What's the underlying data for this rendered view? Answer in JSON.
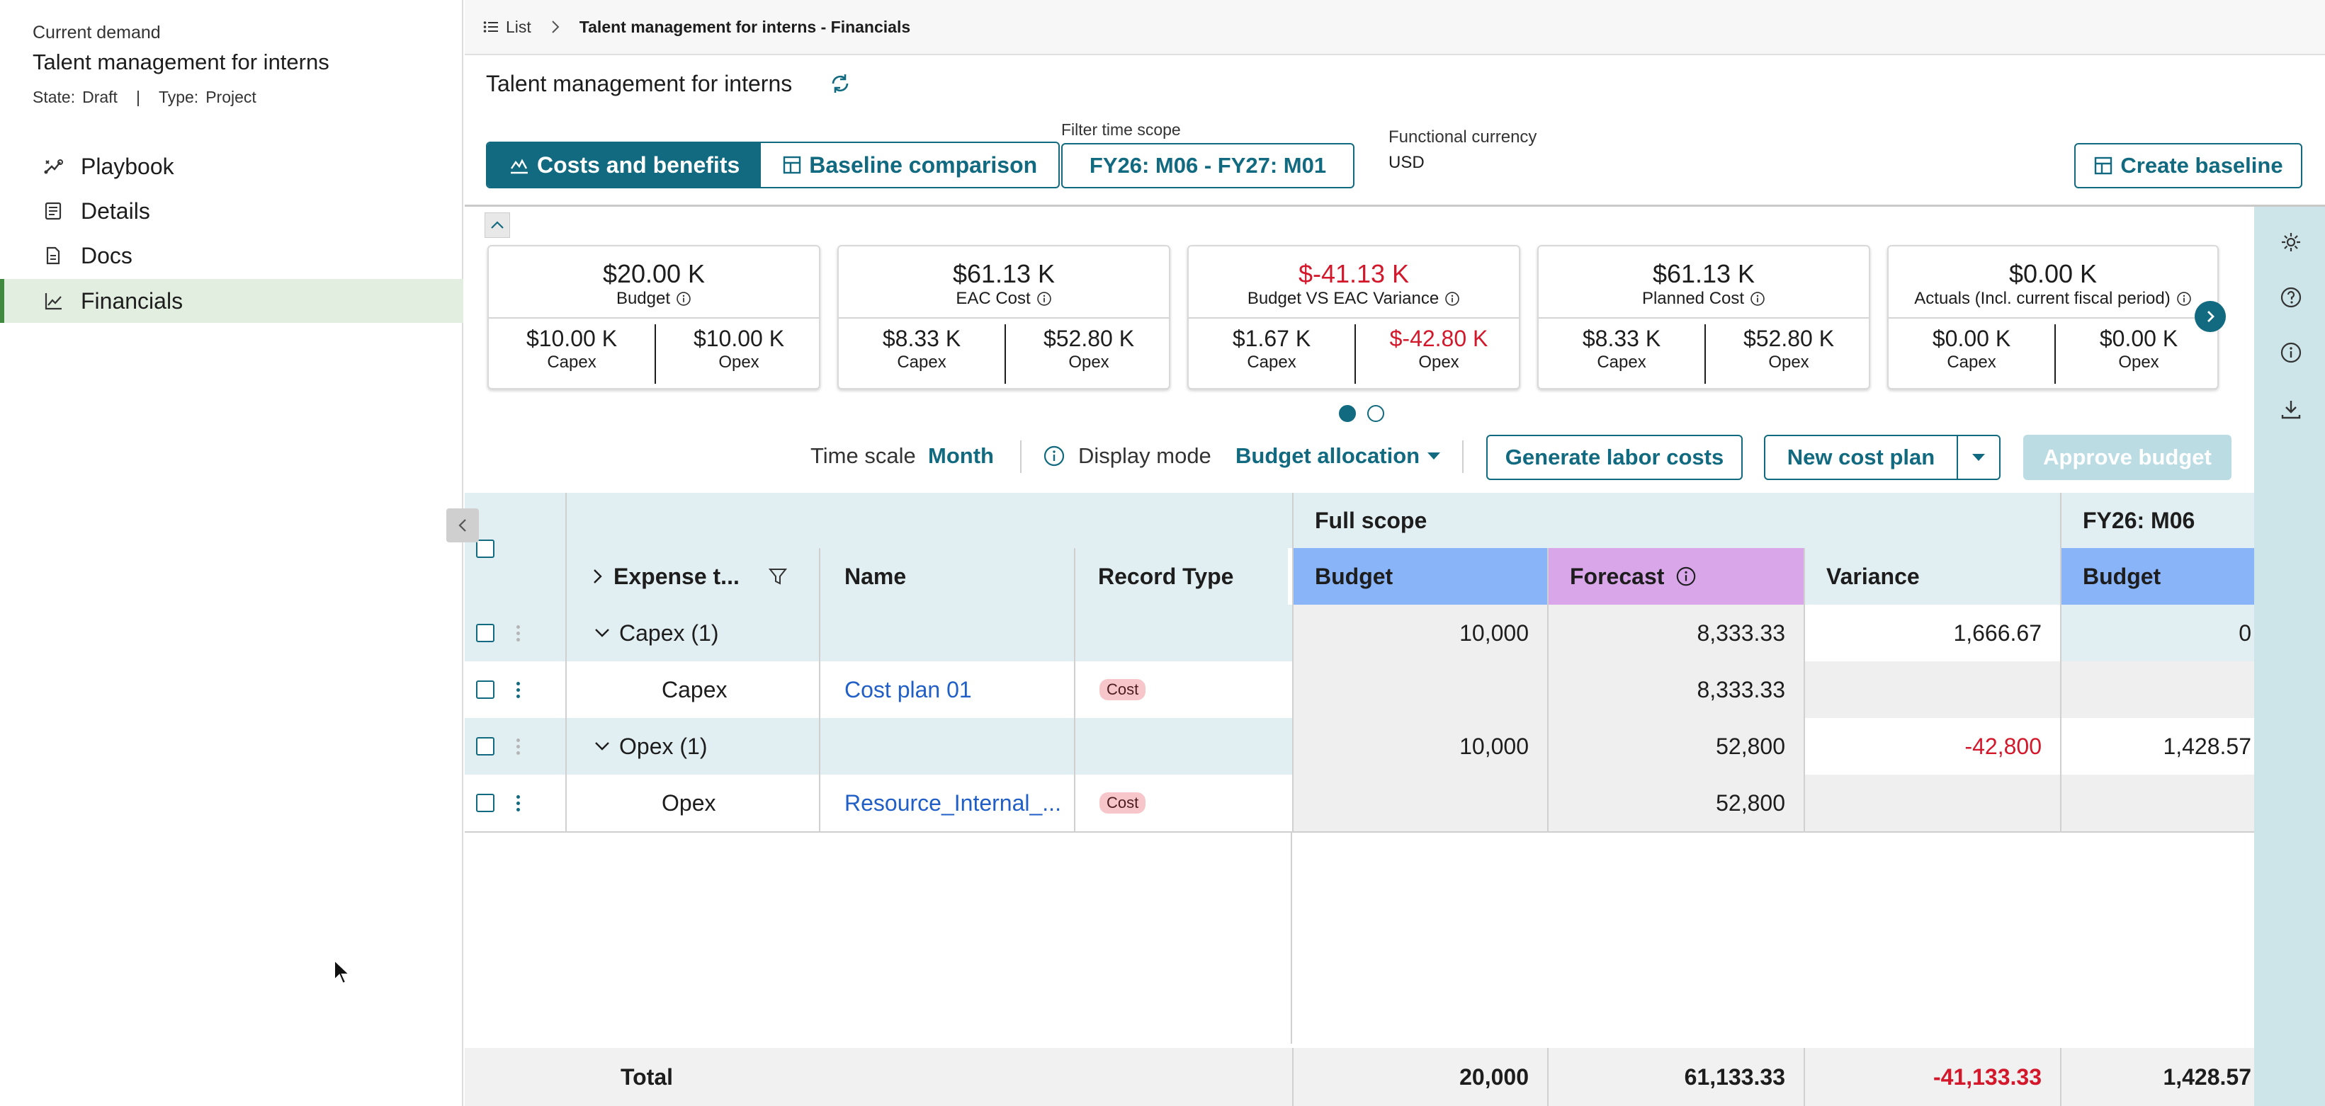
{
  "sidebar": {
    "overline": "Current demand",
    "title": "Talent management for interns",
    "state_label": "State:",
    "state_value": "Draft",
    "separator": "|",
    "type_label": "Type:",
    "type_value": "Project",
    "items": [
      {
        "label": "Playbook",
        "icon": "playbook-icon"
      },
      {
        "label": "Details",
        "icon": "details-icon"
      },
      {
        "label": "Docs",
        "icon": "docs-icon"
      },
      {
        "label": "Financials",
        "icon": "chart-line-icon",
        "active": true
      }
    ]
  },
  "breadcrumb": {
    "list": "List",
    "current": "Talent management for interns - Financials"
  },
  "header": {
    "title": "Talent management for interns",
    "tabs": [
      {
        "label": "Costs and benefits",
        "active": true
      },
      {
        "label": "Baseline comparison",
        "active": false
      }
    ],
    "filter_label": "Filter time scope",
    "filter_value": "FY26: M06 - FY27: M01",
    "currency_label": "Functional currency",
    "currency_value": "USD",
    "create_baseline": "Create baseline"
  },
  "cards": [
    {
      "value": "$20.00 K",
      "label": "Budget",
      "capex": "$10.00 K",
      "opex": "$10.00 K",
      "value_negative": false,
      "opex_negative": false
    },
    {
      "value": "$61.13 K",
      "label": "EAC Cost",
      "capex": "$8.33 K",
      "opex": "$52.80 K",
      "value_negative": false,
      "opex_negative": false
    },
    {
      "value": "$-41.13 K",
      "label": "Budget VS EAC Variance",
      "capex": "$1.67 K",
      "opex": "$-42.80 K",
      "value_negative": true,
      "opex_negative": true
    },
    {
      "value": "$61.13 K",
      "label": "Planned Cost",
      "capex": "$8.33 K",
      "opex": "$52.80 K",
      "value_negative": false,
      "opex_negative": false
    },
    {
      "value": "$0.00 K",
      "label": "Actuals (Incl. current fiscal period)",
      "capex": "$0.00 K",
      "opex": "$0.00 K",
      "value_negative": false,
      "opex_negative": false
    }
  ],
  "card_sub_labels": {
    "capex": "Capex",
    "opex": "Opex"
  },
  "carousel": {
    "pages": 2,
    "current": 1
  },
  "toolbar": {
    "time_scale_label": "Time scale",
    "time_scale_value": "Month",
    "display_mode_label": "Display mode",
    "display_mode_value": "Budget allocation",
    "generate": "Generate labor costs",
    "new_cost_plan": "New cost plan",
    "approve": "Approve budget"
  },
  "grid": {
    "group_full_scope": "Full scope",
    "group_period": "FY26: M06",
    "headers": {
      "expense_type": "Expense t...",
      "name": "Name",
      "record_type": "Record Type",
      "budget": "Budget",
      "forecast": "Forecast",
      "variance": "Variance",
      "period_budget": "Budget"
    },
    "rows": [
      {
        "expense": "Capex (1)",
        "group": true,
        "name": "",
        "record": "",
        "budget": "10,000",
        "forecast": "8,333.33",
        "variance": "1,666.67",
        "variance_negative": false,
        "period_budget": "0"
      },
      {
        "expense": "Capex",
        "group": false,
        "name": "Cost plan 01",
        "record": "Cost",
        "budget": "",
        "forecast": "8,333.33",
        "variance": "",
        "variance_negative": false,
        "period_budget": ""
      },
      {
        "expense": "Opex (1)",
        "group": true,
        "name": "",
        "record": "",
        "budget": "10,000",
        "forecast": "52,800",
        "variance": "-42,800",
        "variance_negative": true,
        "period_budget": "1,428.57"
      },
      {
        "expense": "Opex",
        "group": false,
        "name": "Resource_Internal_...",
        "record": "Cost",
        "budget": "",
        "forecast": "52,800",
        "variance": "",
        "variance_negative": false,
        "period_budget": ""
      }
    ],
    "total": {
      "label": "Total",
      "budget": "20,000",
      "forecast": "61,133.33",
      "variance": "-41,133.33",
      "variance_negative": true,
      "period_budget": "1,428.57"
    }
  },
  "colors": {
    "accent": "#116a80",
    "negative": "#d3182b",
    "budget_header": "#8ab4f8",
    "forecast_header": "#d9a6ea",
    "active_nav": "#e2eee0",
    "rail": "#cde5e9"
  }
}
